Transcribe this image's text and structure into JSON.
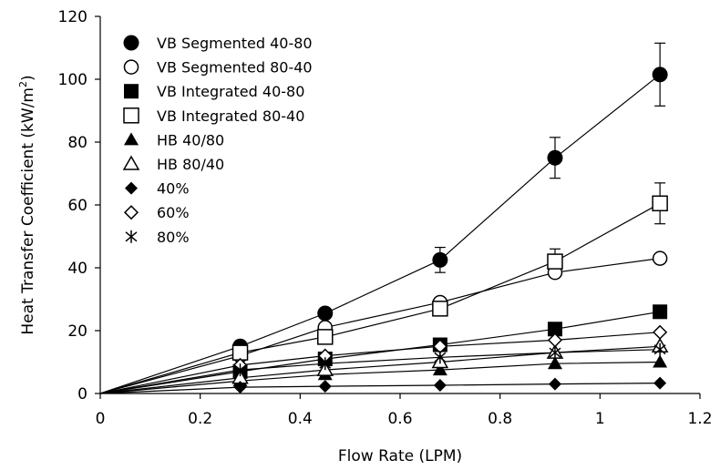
{
  "chart_data": {
    "type": "scatter",
    "xlabel": "Flow Rate (LPM)",
    "ylabel": "Heat Transfer Coefficient (kW/m",
    "ylabel_sup": "2",
    "ylabel_end": ")",
    "xlim": [
      0,
      1.2
    ],
    "ylim": [
      0,
      120
    ],
    "xticks": [
      0,
      0.2,
      0.4,
      0.6,
      0.8,
      1,
      1.2
    ],
    "xtick_labels": [
      "0",
      "0.2",
      "0.4",
      "0.6",
      "0.8",
      "1",
      "1.2"
    ],
    "yticks": [
      0,
      20,
      40,
      60,
      80,
      100,
      120
    ],
    "ytick_labels": [
      "0",
      "20",
      "40",
      "60",
      "80",
      "100",
      "120"
    ],
    "grid": false,
    "legend_position": "top-left",
    "series": [
      {
        "name": "VB Segmented 40-80",
        "marker": "circle-filled",
        "x": [
          0.28,
          0.45,
          0.68,
          0.91,
          1.12
        ],
        "y": [
          15,
          25.5,
          42.5,
          75,
          101.5
        ],
        "error": [
          0,
          0,
          4,
          6.5,
          10
        ],
        "trendline": true
      },
      {
        "name": "VB Segmented 80-40",
        "marker": "circle-open",
        "x": [
          0.28,
          0.45,
          0.68,
          0.91,
          1.12
        ],
        "y": [
          12,
          21,
          29,
          38.5,
          43
        ],
        "error": [
          0,
          0,
          0,
          0,
          0
        ],
        "trendline": true
      },
      {
        "name": "VB Integrated 40-80",
        "marker": "square-filled",
        "x": [
          0.28,
          0.45,
          0.68,
          0.91,
          1.12
        ],
        "y": [
          7,
          11,
          15.5,
          20.5,
          26
        ],
        "error": [
          0,
          0,
          0,
          0,
          0
        ],
        "trendline": true
      },
      {
        "name": "VB Integrated 80-40",
        "marker": "square-open",
        "x": [
          0.28,
          0.45,
          0.68,
          0.91,
          1.12
        ],
        "y": [
          13,
          18,
          27,
          42,
          60.5
        ],
        "error": [
          0,
          0,
          2,
          4,
          6.5
        ],
        "trendline": true
      },
      {
        "name": "HB 40/80",
        "marker": "triangle-filled",
        "x": [
          0.28,
          0.45,
          0.68,
          0.91,
          1.12
        ],
        "y": [
          4,
          6,
          7.5,
          9.5,
          10
        ],
        "error": [
          0,
          0,
          0,
          0,
          0
        ],
        "trendline": true
      },
      {
        "name": "HB 80/40",
        "marker": "triangle-open",
        "x": [
          0.28,
          0.45,
          0.68,
          0.91,
          1.12
        ],
        "y": [
          5,
          7.5,
          10,
          13,
          15
        ],
        "error": [
          0,
          0,
          0,
          0,
          0
        ],
        "trendline": true
      },
      {
        "name": "40%",
        "marker": "diamond-filled",
        "x": [
          0.28,
          0.45,
          0.68,
          0.91,
          1.12
        ],
        "y": [
          2,
          2.3,
          2.6,
          3,
          3.3
        ],
        "error": [
          0,
          0,
          0,
          0,
          0
        ],
        "trendline": true
      },
      {
        "name": "60%",
        "marker": "diamond-open",
        "x": [
          0.28,
          0.45,
          0.68,
          0.91,
          1.12
        ],
        "y": [
          9,
          12,
          15,
          17,
          19.5
        ],
        "error": [
          0,
          0,
          0,
          0,
          0
        ],
        "trendline": true
      },
      {
        "name": "80%",
        "marker": "asterisk",
        "x": [
          0.28,
          0.45,
          0.68,
          0.91,
          1.12
        ],
        "y": [
          7.5,
          9.5,
          11.5,
          13,
          14
        ],
        "error": [
          0,
          0,
          0,
          0,
          0
        ],
        "trendline": true
      }
    ]
  }
}
